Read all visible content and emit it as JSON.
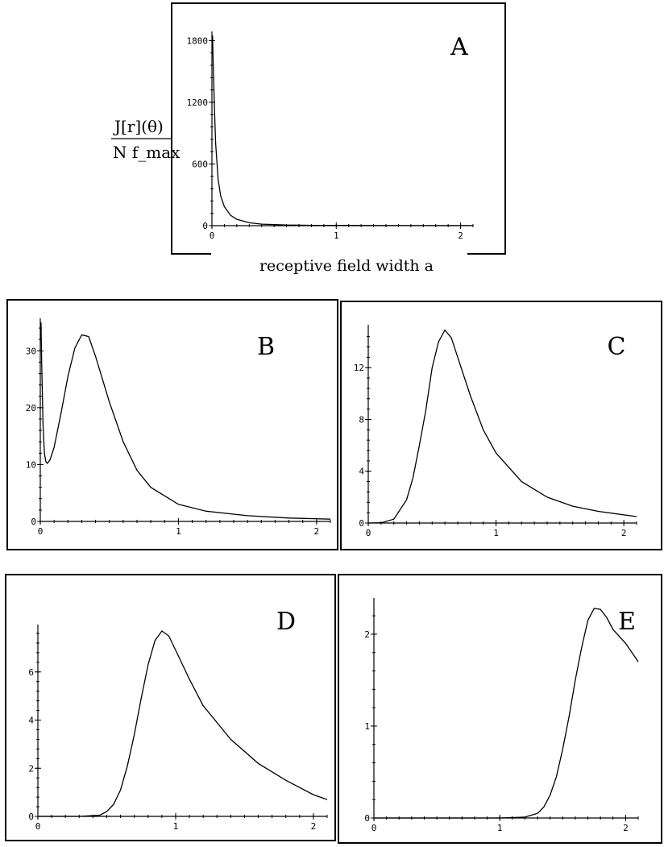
{
  "chart_data": [
    {
      "panel": "A",
      "type": "line",
      "xlabel": "receptive field width a",
      "ylabel": {
        "numerator": "J[r](θ)",
        "denominator": "N f_max"
      },
      "xlim": [
        0,
        2.1
      ],
      "ylim": [
        0,
        1850
      ],
      "xticks": [
        0,
        1,
        2
      ],
      "yticks": [
        0,
        600,
        1200,
        1800
      ],
      "x": [
        0.005,
        0.01,
        0.02,
        0.03,
        0.05,
        0.07,
        0.1,
        0.15,
        0.2,
        0.3,
        0.4,
        0.6,
        0.8,
        1.0,
        1.5,
        2.1
      ],
      "y": [
        1850,
        1600,
        1150,
        800,
        450,
        290,
        185,
        100,
        62,
        28,
        15,
        6,
        3,
        2,
        1,
        0.5
      ]
    },
    {
      "panel": "B",
      "type": "line",
      "xlim": [
        0,
        2.1
      ],
      "ylim": [
        0,
        35
      ],
      "xticks": [
        0,
        1,
        2
      ],
      "yticks": [
        0,
        10,
        20,
        30
      ],
      "x": [
        0.005,
        0.01,
        0.02,
        0.03,
        0.04,
        0.05,
        0.07,
        0.1,
        0.15,
        0.2,
        0.25,
        0.3,
        0.35,
        0.4,
        0.5,
        0.6,
        0.7,
        0.8,
        1.0,
        1.2,
        1.5,
        1.8,
        2.1
      ],
      "y": [
        35,
        28,
        17,
        12,
        10.5,
        10.2,
        10.8,
        13,
        19,
        25.5,
        30.5,
        32.8,
        32.5,
        29,
        21,
        14,
        9,
        6,
        3,
        1.8,
        1,
        0.6,
        0.4
      ]
    },
    {
      "panel": "C",
      "type": "line",
      "xlim": [
        0,
        2.1
      ],
      "ylim": [
        0,
        15
      ],
      "xticks": [
        0,
        1,
        2
      ],
      "yticks": [
        0,
        4,
        8,
        12
      ],
      "x": [
        0,
        0.1,
        0.2,
        0.3,
        0.35,
        0.4,
        0.45,
        0.5,
        0.55,
        0.6,
        0.65,
        0.7,
        0.8,
        0.9,
        1.0,
        1.2,
        1.4,
        1.6,
        1.8,
        2.1
      ],
      "y": [
        0,
        0.02,
        0.3,
        1.8,
        3.5,
        6,
        8.7,
        12,
        14,
        14.9,
        14.3,
        12.8,
        9.8,
        7.2,
        5.4,
        3.2,
        2,
        1.3,
        0.9,
        0.5
      ]
    },
    {
      "panel": "D",
      "type": "line",
      "xlim": [
        0,
        2.1
      ],
      "ylim": [
        0,
        7.8
      ],
      "xticks": [
        0,
        1,
        2
      ],
      "yticks": [
        0,
        2,
        4,
        6
      ],
      "x": [
        0,
        0.3,
        0.45,
        0.5,
        0.55,
        0.6,
        0.65,
        0.7,
        0.75,
        0.8,
        0.85,
        0.9,
        0.95,
        1.0,
        1.1,
        1.2,
        1.4,
        1.6,
        1.8,
        2.0,
        2.1
      ],
      "y": [
        0,
        0,
        0.05,
        0.2,
        0.5,
        1.1,
        2.1,
        3.4,
        4.9,
        6.3,
        7.3,
        7.7,
        7.5,
        6.9,
        5.7,
        4.6,
        3.2,
        2.2,
        1.5,
        0.9,
        0.7
      ]
    },
    {
      "panel": "E",
      "type": "line",
      "xlim": [
        0,
        2.1
      ],
      "ylim": [
        0,
        2.35
      ],
      "xticks": [
        0,
        1,
        2
      ],
      "yticks": [
        0,
        1,
        2
      ],
      "x": [
        0,
        1.0,
        1.2,
        1.3,
        1.35,
        1.4,
        1.45,
        1.5,
        1.55,
        1.6,
        1.65,
        1.7,
        1.75,
        1.8,
        1.85,
        1.9,
        2.0,
        2.1
      ],
      "y": [
        0,
        0,
        0.01,
        0.05,
        0.12,
        0.25,
        0.45,
        0.75,
        1.1,
        1.5,
        1.85,
        2.15,
        2.28,
        2.27,
        2.18,
        2.05,
        1.9,
        1.7
      ]
    }
  ]
}
